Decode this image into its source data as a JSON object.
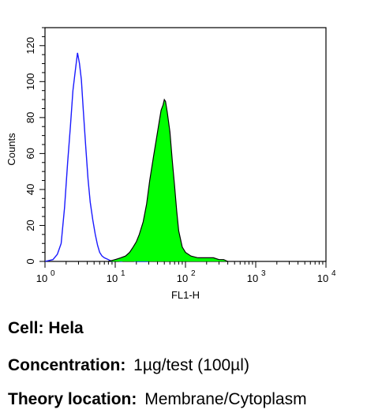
{
  "chart_data": {
    "type": "area",
    "title": "",
    "xlabel": "FL1-H",
    "ylabel": "Counts",
    "x_scale": "log",
    "xlim": [
      1,
      10000
    ],
    "ylim": [
      0,
      130
    ],
    "x_ticks": [
      {
        "value": 1,
        "base": "10",
        "exp": "0"
      },
      {
        "value": 10,
        "base": "10",
        "exp": "1"
      },
      {
        "value": 100,
        "base": "10",
        "exp": "2"
      },
      {
        "value": 1000,
        "base": "10",
        "exp": "3"
      },
      {
        "value": 10000,
        "base": "10",
        "exp": "4"
      }
    ],
    "y_ticks": [
      "0",
      "20",
      "40",
      "60",
      "80",
      "100",
      "120"
    ],
    "grid": false,
    "series": [
      {
        "style": "outline",
        "color": "#1a1aff",
        "x": [
          1.0,
          1.3,
          1.5,
          1.7,
          1.9,
          2.1,
          2.3,
          2.5,
          2.7,
          2.9,
          3.1,
          3.3,
          3.5,
          3.8,
          4.1,
          4.4,
          4.8,
          5.2,
          5.6,
          6.0,
          6.5,
          7.0,
          8.0,
          9.0,
          10.0,
          12.0,
          15.0,
          20.0,
          30.0
        ],
        "y": [
          0,
          1,
          4,
          10,
          30,
          55,
          75,
          95,
          106,
          116,
          110,
          101,
          85,
          64,
          46,
          33,
          23,
          15,
          9,
          5,
          3,
          2,
          1,
          0,
          1,
          0,
          1,
          0,
          0
        ]
      },
      {
        "style": "filled",
        "color": "#00ff00",
        "stroke": "#000000",
        "x": [
          8.0,
          10.0,
          12.0,
          14.0,
          16.0,
          18.0,
          20.0,
          22.0,
          25.0,
          28.0,
          31.0,
          35.0,
          40.0,
          45.0,
          48.0,
          50.0,
          52.0,
          55.0,
          60.0,
          65.0,
          70.0,
          75.0,
          80.0,
          90.0,
          100.0,
          120.0,
          150.0,
          200.0,
          250.0,
          300.0,
          350.0,
          400.0
        ],
        "y": [
          0,
          1,
          2,
          3,
          5,
          8,
          11,
          15,
          22,
          32,
          45,
          58,
          72,
          84,
          87,
          90,
          89,
          83,
          72,
          56,
          42,
          28,
          17,
          8,
          5,
          3,
          2,
          2,
          2,
          1,
          1,
          0
        ]
      }
    ]
  },
  "info": {
    "cell": {
      "label": "Cell:",
      "value": "Hela"
    },
    "concentration": {
      "label": "Concentration:",
      "value": "1µg/test (100µl)"
    },
    "location": {
      "label": "Theory location:",
      "value": "Membrane/Cytoplasm"
    }
  }
}
